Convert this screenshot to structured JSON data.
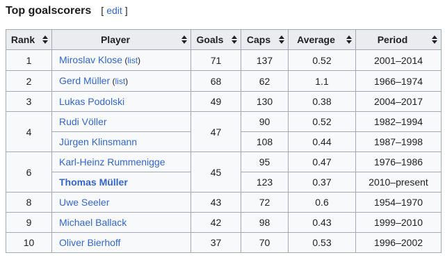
{
  "colors": {
    "link_blue": "#3366cc",
    "text": "#202122",
    "table_border": "#a2a9b1",
    "header_bg": "#eaecf0",
    "row_bg": "#f8f9fa",
    "page_bg": "#ffffff"
  },
  "heading": {
    "title": "Top goalscorers",
    "edit_bracket_open": "[",
    "edit_label": "edit",
    "edit_bracket_close": "]"
  },
  "table": {
    "columns": [
      {
        "label": "Rank",
        "sortable": true
      },
      {
        "label": "Player",
        "sortable": true
      },
      {
        "label": "Goals",
        "sortable": true
      },
      {
        "label": "Caps",
        "sortable": true
      },
      {
        "label": "Average",
        "sortable": true
      },
      {
        "label": "Period",
        "sortable": true
      }
    ],
    "rows": [
      {
        "rank": "1",
        "rank_rowspan": 1,
        "player": "Miroslav Klose",
        "player_list_link": "list",
        "player_bold": false,
        "goals": "71",
        "goals_rowspan": 1,
        "caps": "137",
        "average": "0.52",
        "period": "2001–2014"
      },
      {
        "rank": "2",
        "rank_rowspan": 1,
        "player": "Gerd Müller",
        "player_list_link": "list",
        "player_bold": false,
        "goals": "68",
        "goals_rowspan": 1,
        "caps": "62",
        "average": "1.1",
        "period": "1966–1974"
      },
      {
        "rank": "3",
        "rank_rowspan": 1,
        "player": "Lukas Podolski",
        "player_list_link": null,
        "player_bold": false,
        "goals": "49",
        "goals_rowspan": 1,
        "caps": "130",
        "average": "0.38",
        "period": "2004–2017"
      },
      {
        "rank": "4",
        "rank_rowspan": 2,
        "player": "Rudi Völler",
        "player_list_link": null,
        "player_bold": false,
        "goals": "47",
        "goals_rowspan": 2,
        "caps": "90",
        "average": "0.52",
        "period": "1982–1994"
      },
      {
        "rank": null,
        "player": "Jürgen Klinsmann",
        "player_list_link": null,
        "player_bold": false,
        "goals": null,
        "caps": "108",
        "average": "0.44",
        "period": "1987–1998"
      },
      {
        "rank": "6",
        "rank_rowspan": 2,
        "player": "Karl-Heinz Rummenigge",
        "player_list_link": null,
        "player_bold": false,
        "goals": "45",
        "goals_rowspan": 2,
        "caps": "95",
        "average": "0.47",
        "period": "1976–1986"
      },
      {
        "rank": null,
        "player": "Thomas Müller",
        "player_list_link": null,
        "player_bold": true,
        "goals": null,
        "caps": "123",
        "average": "0.37",
        "period": "2010–present"
      },
      {
        "rank": "8",
        "rank_rowspan": 1,
        "player": "Uwe Seeler",
        "player_list_link": null,
        "player_bold": false,
        "goals": "43",
        "goals_rowspan": 1,
        "caps": "72",
        "average": "0.6",
        "period": "1954–1970"
      },
      {
        "rank": "9",
        "rank_rowspan": 1,
        "player": "Michael Ballack",
        "player_list_link": null,
        "player_bold": false,
        "goals": "42",
        "goals_rowspan": 1,
        "caps": "98",
        "average": "0.43",
        "period": "1999–2010"
      },
      {
        "rank": "10",
        "rank_rowspan": 1,
        "player": "Oliver Bierhoff",
        "player_list_link": null,
        "player_bold": false,
        "goals": "37",
        "goals_rowspan": 1,
        "caps": "70",
        "average": "0.53",
        "period": "1996–2002"
      }
    ]
  }
}
